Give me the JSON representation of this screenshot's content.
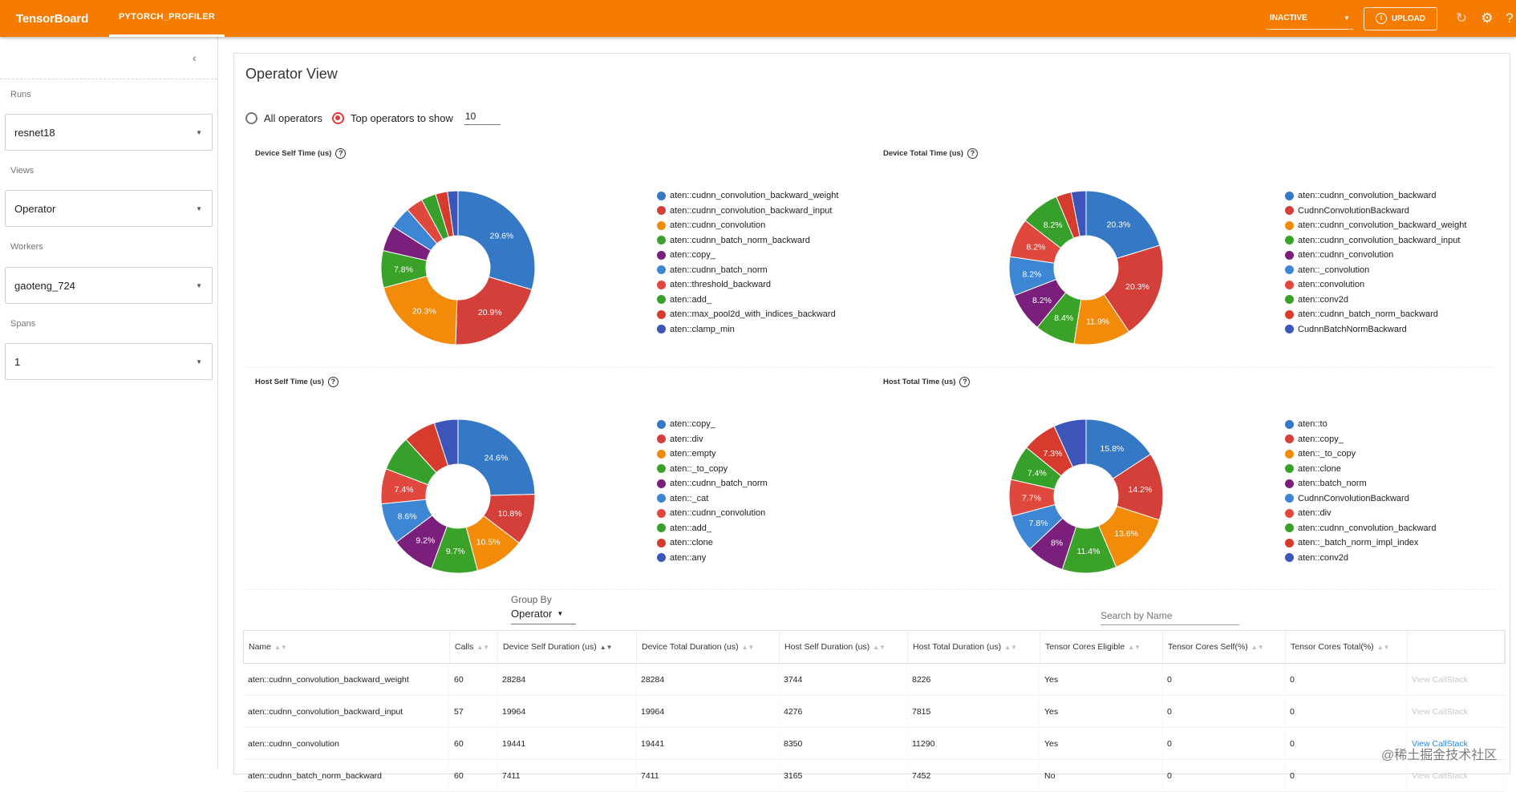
{
  "topbar": {
    "brand": "TensorBoard",
    "plugin_tab": "PYTORCH_PROFILER",
    "reload_status": "INACTIVE",
    "upload_label": "UPLOAD",
    "icons": [
      "info-icon",
      "refresh-icon",
      "settings-icon",
      "help-icon"
    ]
  },
  "sidebar": {
    "runs_label": "Runs",
    "runs_value": "resnet18",
    "views_label": "Views",
    "views_value": "Operator",
    "workers_label": "Workers",
    "workers_value": "gaoteng_724",
    "spans_label": "Spans",
    "spans_value": "1"
  },
  "main": {
    "title": "Operator View",
    "radio_all": "All operators",
    "radio_top": "Top operators to show",
    "top_n": "10",
    "charts": [
      {
        "title": "Device Self Time (us)",
        "slices": [
          {
            "name": "aten::cudnn_convolution_backward_weight",
            "pct": 29.6,
            "color": "#3478c6",
            "label": "29.6%"
          },
          {
            "name": "aten::cudnn_convolution_backward_input",
            "pct": 20.9,
            "color": "#d43f3a",
            "label": "20.9%"
          },
          {
            "name": "aten::cudnn_convolution",
            "pct": 20.3,
            "color": "#f28b0a",
            "label": "20.3%"
          },
          {
            "name": "aten::cudnn_batch_norm_backward",
            "pct": 7.8,
            "color": "#3aa229",
            "label": "7.8%"
          },
          {
            "name": "aten::copy_",
            "pct": 5.4,
            "color": "#7b1f7d",
            "label": ""
          },
          {
            "name": "aten::cudnn_batch_norm",
            "pct": 4.6,
            "color": "#3d86d4",
            "label": ""
          },
          {
            "name": "aten::threshold_backward",
            "pct": 3.6,
            "color": "#e0473d",
            "label": ""
          },
          {
            "name": "aten::add_",
            "pct": 3.1,
            "color": "#37a02a",
            "label": ""
          },
          {
            "name": "aten::max_pool2d_with_indices_backward",
            "pct": 2.5,
            "color": "#d63c2e",
            "label": ""
          },
          {
            "name": "aten::clamp_min",
            "pct": 2.2,
            "color": "#3b55b8",
            "label": ""
          }
        ]
      },
      {
        "title": "Device Total Time (us)",
        "slices": [
          {
            "name": "aten::cudnn_convolution_backward",
            "pct": 20.3,
            "color": "#3478c6",
            "label": "20.3%"
          },
          {
            "name": "CudnnConvolutionBackward",
            "pct": 20.3,
            "color": "#d43f3a",
            "label": "20.3%"
          },
          {
            "name": "aten::cudnn_convolution_backward_weight",
            "pct": 11.9,
            "color": "#f28b0a",
            "label": "11.9%"
          },
          {
            "name": "aten::cudnn_convolution_backward_input",
            "pct": 8.4,
            "color": "#3aa229",
            "label": "8.4%"
          },
          {
            "name": "aten::cudnn_convolution",
            "pct": 8.2,
            "color": "#7b1f7d",
            "label": "8.2%"
          },
          {
            "name": "aten::_convolution",
            "pct": 8.2,
            "color": "#3d86d4",
            "label": "8.2%"
          },
          {
            "name": "aten::convolution",
            "pct": 8.2,
            "color": "#e0473d",
            "label": "8.2%"
          },
          {
            "name": "aten::conv2d",
            "pct": 8.2,
            "color": "#37a02a",
            "label": "8.2%"
          },
          {
            "name": "aten::cudnn_batch_norm_backward",
            "pct": 3.2,
            "color": "#d63c2e",
            "label": ""
          },
          {
            "name": "CudnnBatchNormBackward",
            "pct": 3.1,
            "color": "#3b55b8",
            "label": ""
          }
        ]
      },
      {
        "title": "Host Self Time (us)",
        "slices": [
          {
            "name": "aten::copy_",
            "pct": 24.6,
            "color": "#3478c6",
            "label": "24.6%"
          },
          {
            "name": "aten::div",
            "pct": 10.8,
            "color": "#d43f3a",
            "label": "10.8%"
          },
          {
            "name": "aten::empty",
            "pct": 10.5,
            "color": "#f28b0a",
            "label": "10.5%"
          },
          {
            "name": "aten::_to_copy",
            "pct": 9.7,
            "color": "#3aa229",
            "label": "9.7%"
          },
          {
            "name": "aten::cudnn_batch_norm",
            "pct": 9.2,
            "color": "#7b1f7d",
            "label": "9.2%"
          },
          {
            "name": "aten::_cat",
            "pct": 8.6,
            "color": "#3d86d4",
            "label": "8.6%"
          },
          {
            "name": "aten::cudnn_convolution",
            "pct": 7.4,
            "color": "#e0473d",
            "label": "7.4%"
          },
          {
            "name": "aten::add_",
            "pct": 7.4,
            "color": "#37a02a",
            "label": ""
          },
          {
            "name": "aten::clone",
            "pct": 6.8,
            "color": "#d63c2e",
            "label": ""
          },
          {
            "name": "aten::any",
            "pct": 5.0,
            "color": "#3b55b8",
            "label": ""
          }
        ]
      },
      {
        "title": "Host Total Time (us)",
        "slices": [
          {
            "name": "aten::to",
            "pct": 15.8,
            "color": "#3478c6",
            "label": "15.8%"
          },
          {
            "name": "aten::copy_",
            "pct": 14.2,
            "color": "#d43f3a",
            "label": "14.2%"
          },
          {
            "name": "aten::_to_copy",
            "pct": 13.6,
            "color": "#f28b0a",
            "label": "13.6%"
          },
          {
            "name": "aten::clone",
            "pct": 11.4,
            "color": "#3aa229",
            "label": "11.4%"
          },
          {
            "name": "aten::batch_norm",
            "pct": 8.0,
            "color": "#7b1f7d",
            "label": "8%"
          },
          {
            "name": "CudnnConvolutionBackward",
            "pct": 7.8,
            "color": "#3d86d4",
            "label": "7.8%"
          },
          {
            "name": "aten::div",
            "pct": 7.7,
            "color": "#e0473d",
            "label": "7.7%"
          },
          {
            "name": "aten::cudnn_convolution_backward",
            "pct": 7.4,
            "color": "#37a02a",
            "label": "7.4%"
          },
          {
            "name": "aten::_batch_norm_impl_index",
            "pct": 7.3,
            "color": "#d63c2e",
            "label": "7.3%"
          },
          {
            "name": "aten::conv2d",
            "pct": 6.8,
            "color": "#3b55b8",
            "label": ""
          }
        ]
      }
    ],
    "group_by_label": "Group By",
    "group_by_value": "Operator",
    "search_placeholder": "Search by Name",
    "table": {
      "columns": [
        "Name",
        "Calls",
        "Device Self Duration (us)",
        "Device Total Duration (us)",
        "Host Self Duration (us)",
        "Host Total Duration (us)",
        "Tensor Cores Eligible",
        "Tensor Cores Self(%)",
        "Tensor Cores Total(%)",
        ""
      ],
      "rows": [
        [
          "aten::cudnn_convolution_backward_weight",
          "60",
          "28284",
          "28284",
          "3744",
          "8226",
          "Yes",
          "0",
          "0",
          "View CallStack"
        ],
        [
          "aten::cudnn_convolution_backward_input",
          "57",
          "19964",
          "19964",
          "4276",
          "7815",
          "Yes",
          "0",
          "0",
          "View CallStack"
        ],
        [
          "aten::cudnn_convolution",
          "60",
          "19441",
          "19441",
          "8350",
          "11290",
          "Yes",
          "0",
          "0",
          "View CallStack"
        ],
        [
          "aten::cudnn_batch_norm_backward",
          "60",
          "7411",
          "7411",
          "3165",
          "7452",
          "No",
          "0",
          "0",
          "View CallStack"
        ]
      ],
      "callstack_active": [
        false,
        false,
        true,
        false
      ]
    },
    "watermark": "@稀土掘金技术社区"
  }
}
